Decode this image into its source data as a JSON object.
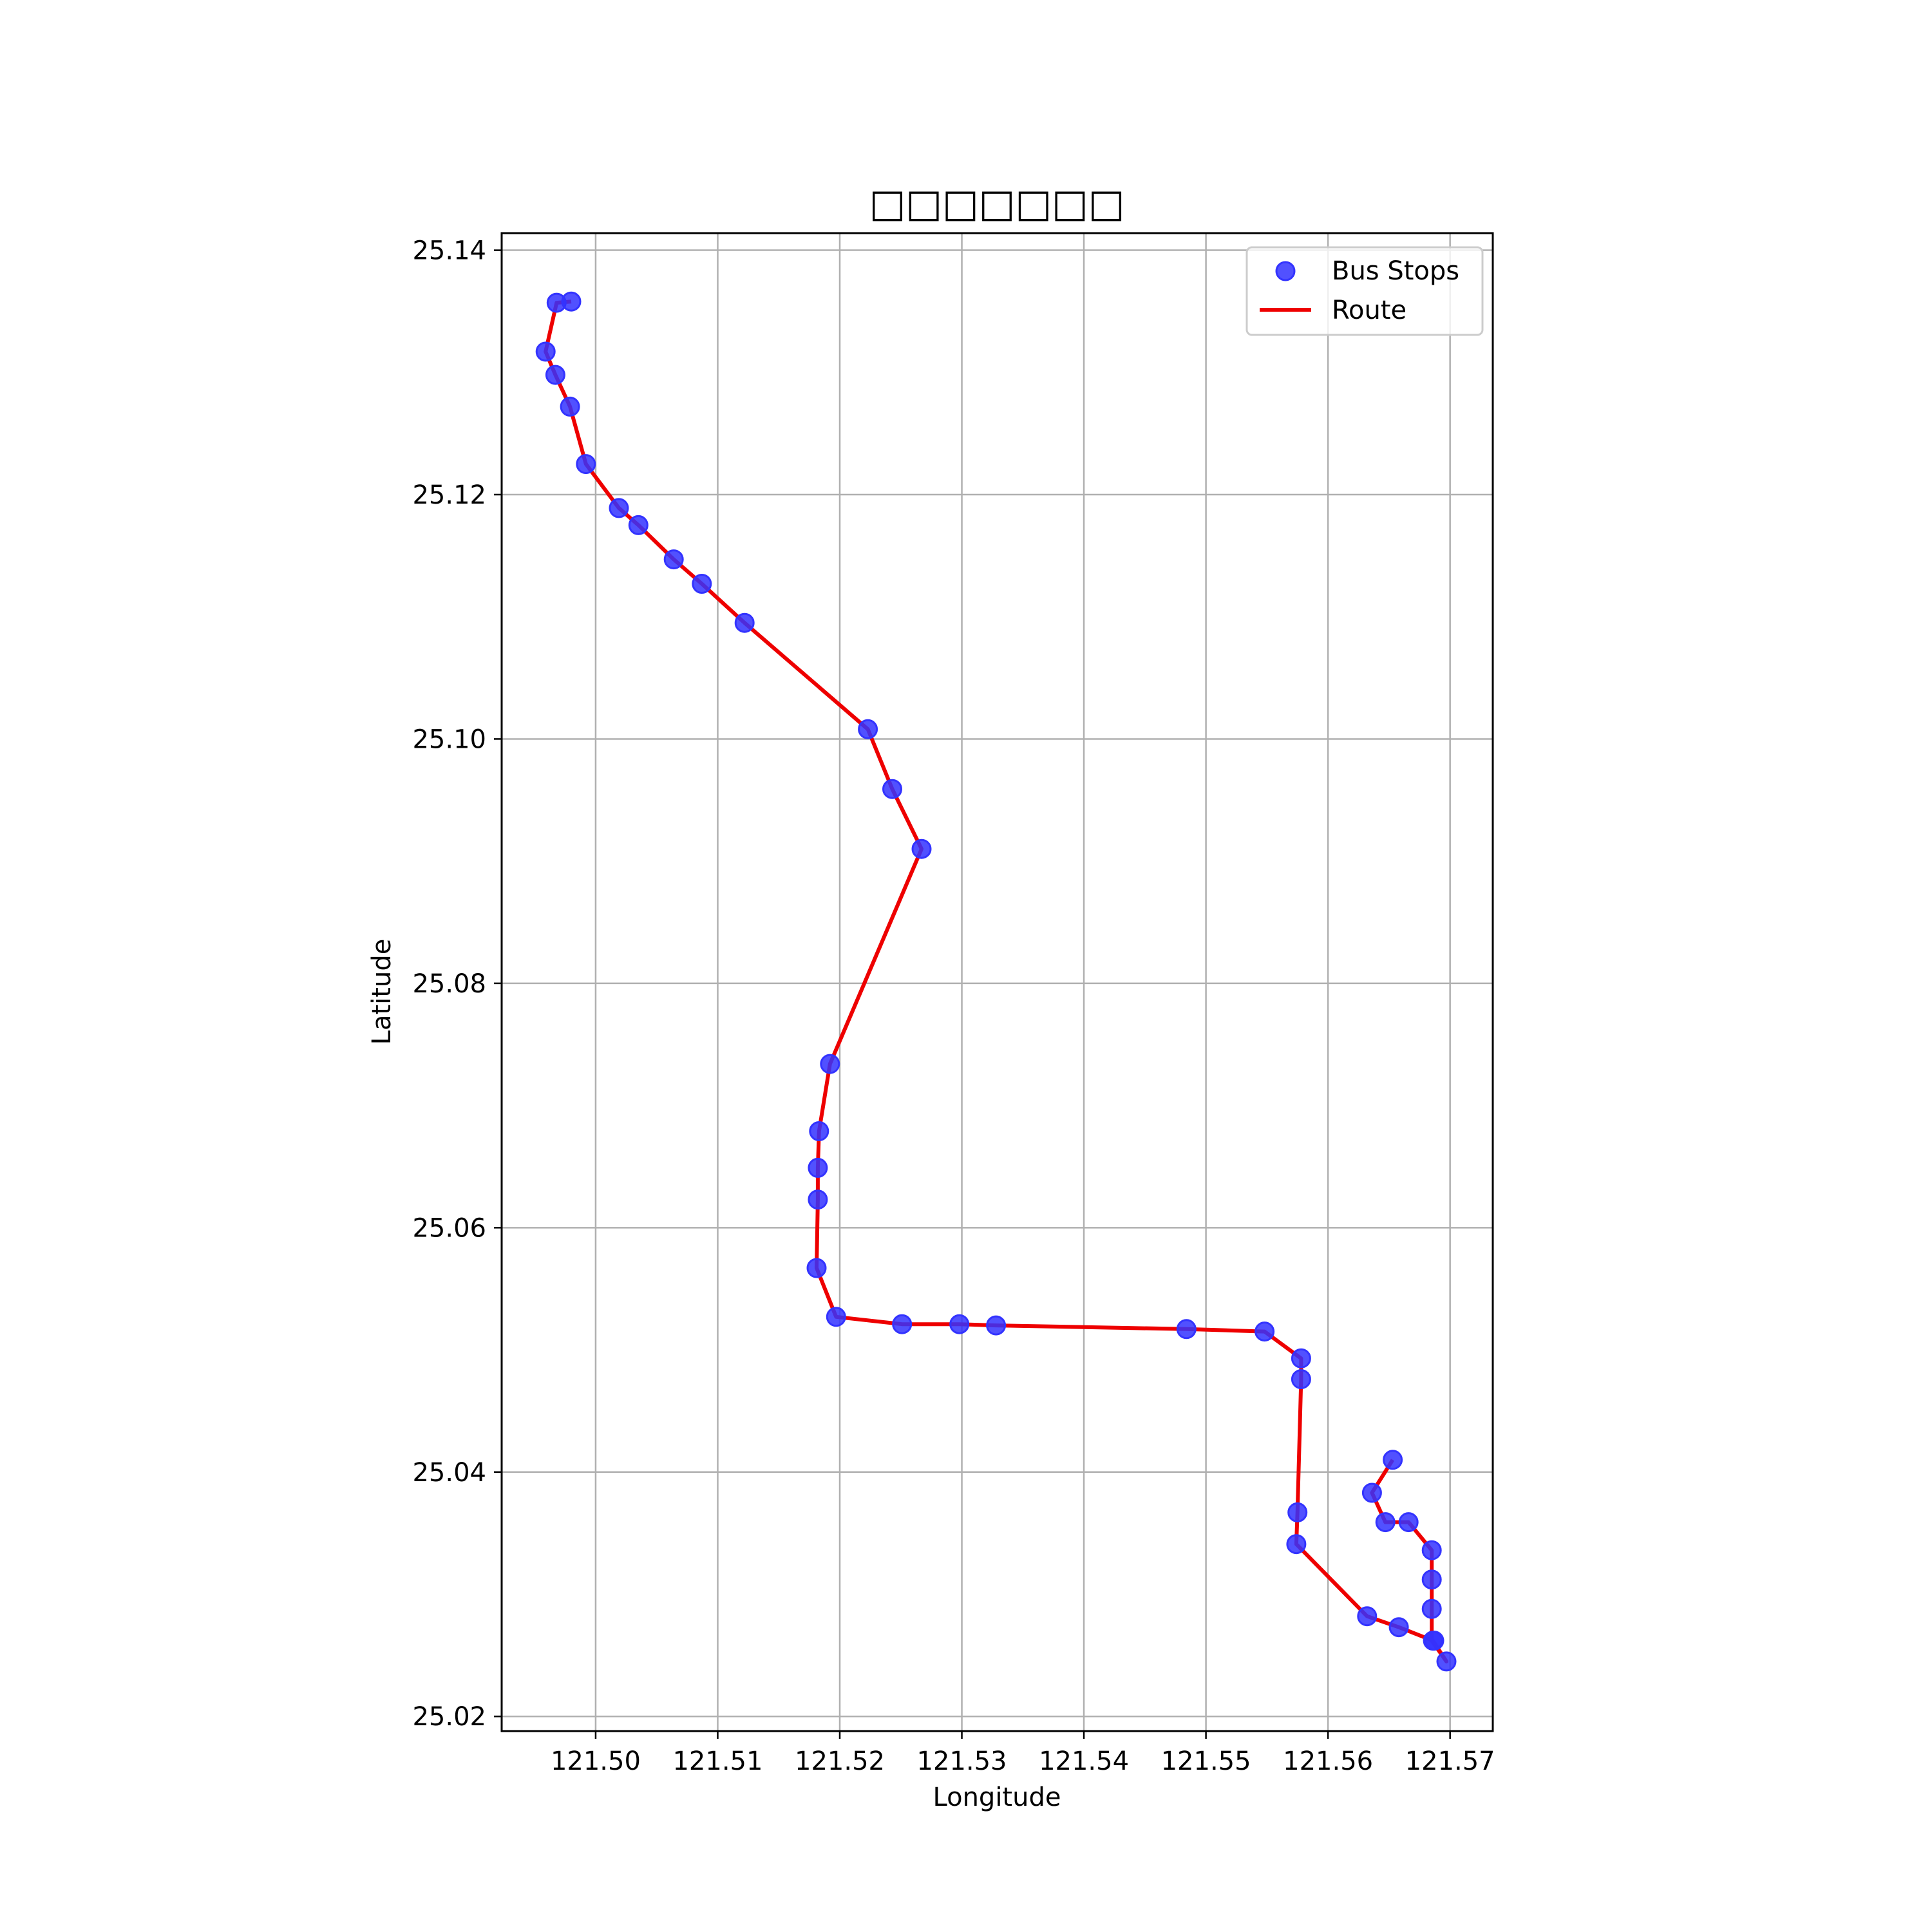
{
  "chart_data": {
    "type": "line",
    "title": "□□□□□□□",
    "xlabel": "Longitude",
    "ylabel": "Latitude",
    "xlim": [
      121.4923,
      121.5735
    ],
    "ylim": [
      25.0188,
      25.1414
    ],
    "xticks": [
      121.5,
      121.51,
      121.52,
      121.53,
      121.54,
      121.55,
      121.56,
      121.57
    ],
    "xtick_labels": [
      "121.50",
      "121.51",
      "121.52",
      "121.53",
      "121.54",
      "121.55",
      "121.56",
      "121.57"
    ],
    "yticks": [
      25.02,
      25.04,
      25.06,
      25.08,
      25.1,
      25.12,
      25.14
    ],
    "ytick_labels": [
      "25.02",
      "25.04",
      "25.06",
      "25.08",
      "25.10",
      "25.12",
      "25.14"
    ],
    "grid": true,
    "legend_position": "top-right",
    "legend": {
      "stops_label": "Bus Stops",
      "route_label": "Route"
    },
    "colors": {
      "stops": "#3333ff",
      "route": "#ee0000",
      "grid": "#b0b0b0"
    },
    "series": [
      {
        "name": "Bus Stops",
        "type": "scatter",
        "points": [
          [
            121.4968,
            25.1357
          ],
          [
            121.498,
            25.1358
          ],
          [
            121.4959,
            25.1317
          ],
          [
            121.4967,
            25.1298
          ],
          [
            121.4979,
            25.1272
          ],
          [
            121.4992,
            25.1225
          ],
          [
            121.5019,
            25.1189
          ],
          [
            121.5035,
            25.1175
          ],
          [
            121.5064,
            25.1147
          ],
          [
            121.5087,
            25.1127
          ],
          [
            121.5122,
            25.1095
          ],
          [
            121.5223,
            25.1008
          ],
          [
            121.5243,
            25.0959
          ],
          [
            121.5267,
            25.091
          ],
          [
            121.5192,
            25.0734
          ],
          [
            121.5183,
            25.0679
          ],
          [
            121.5182,
            25.0649
          ],
          [
            121.5182,
            25.0623
          ],
          [
            121.5181,
            25.0567
          ],
          [
            121.5197,
            25.0527
          ],
          [
            121.5251,
            25.0521
          ],
          [
            121.5298,
            25.0521
          ],
          [
            121.5328,
            25.052
          ],
          [
            121.5484,
            25.0517
          ],
          [
            121.5548,
            25.0515
          ],
          [
            121.5578,
            25.0493
          ],
          [
            121.5578,
            25.0476
          ],
          [
            121.5575,
            25.0367
          ],
          [
            121.5574,
            25.0341
          ],
          [
            121.5632,
            25.0282
          ],
          [
            121.5658,
            25.0273
          ],
          [
            121.5686,
            25.0262
          ],
          [
            121.5687,
            25.0262
          ],
          [
            121.5697,
            25.0245
          ],
          [
            121.5685,
            25.0288
          ],
          [
            121.5685,
            25.0312
          ],
          [
            121.5685,
            25.0336
          ],
          [
            121.5666,
            25.0359
          ],
          [
            121.5647,
            25.0359
          ],
          [
            121.5636,
            25.0383
          ],
          [
            121.5653,
            25.041
          ]
        ]
      },
      {
        "name": "Route",
        "type": "line",
        "points": [
          [
            121.498,
            25.1358
          ],
          [
            121.4968,
            25.1357
          ],
          [
            121.4959,
            25.1317
          ],
          [
            121.4967,
            25.1298
          ],
          [
            121.4979,
            25.1272
          ],
          [
            121.4992,
            25.1225
          ],
          [
            121.5019,
            25.1189
          ],
          [
            121.5035,
            25.1175
          ],
          [
            121.5064,
            25.1147
          ],
          [
            121.5087,
            25.1127
          ],
          [
            121.5122,
            25.1095
          ],
          [
            121.5223,
            25.1008
          ],
          [
            121.5243,
            25.0959
          ],
          [
            121.5267,
            25.091
          ],
          [
            121.5192,
            25.0734
          ],
          [
            121.5183,
            25.0679
          ],
          [
            121.5182,
            25.0649
          ],
          [
            121.5182,
            25.0623
          ],
          [
            121.5181,
            25.0567
          ],
          [
            121.5197,
            25.0527
          ],
          [
            121.5251,
            25.0521
          ],
          [
            121.5298,
            25.0521
          ],
          [
            121.5328,
            25.052
          ],
          [
            121.5484,
            25.0517
          ],
          [
            121.5548,
            25.0515
          ],
          [
            121.5578,
            25.0493
          ],
          [
            121.5578,
            25.0476
          ],
          [
            121.5575,
            25.0367
          ],
          [
            121.5574,
            25.0341
          ],
          [
            121.5632,
            25.0282
          ],
          [
            121.5658,
            25.0273
          ],
          [
            121.5686,
            25.0262
          ],
          [
            121.5697,
            25.0245
          ],
          [
            121.5685,
            25.0262
          ],
          [
            121.5685,
            25.0288
          ],
          [
            121.5685,
            25.0312
          ],
          [
            121.5685,
            25.0336
          ],
          [
            121.5666,
            25.0359
          ],
          [
            121.5647,
            25.0359
          ],
          [
            121.5636,
            25.0383
          ],
          [
            121.5653,
            25.041
          ]
        ]
      }
    ]
  }
}
